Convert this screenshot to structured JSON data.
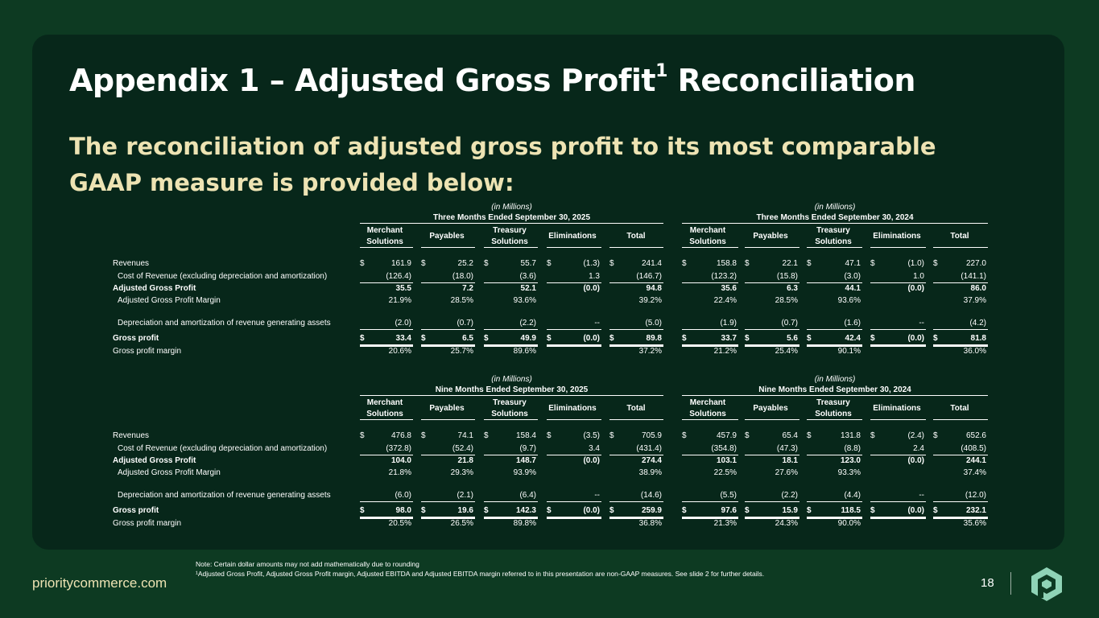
{
  "title": "Appendix 1 – Adjusted Gross Profit",
  "title_sup": "1",
  "title_end": " Reconciliation",
  "subtitle": "The reconciliation of adjusted gross profit to its most comparable GAAP measure is provided below:",
  "col_headers": [
    [
      "Merchant",
      "Solutions"
    ],
    [
      "Payables"
    ],
    [
      "Treasury",
      "Solutions"
    ],
    [
      "Eliminations"
    ],
    [
      "Total"
    ]
  ],
  "sections": [
    {
      "groups": [
        {
          "unit": "(in Millions)",
          "period": "Three Months Ended September 30, 2025"
        },
        {
          "unit": "(in Millions)",
          "period": "Three Months Ended September 30, 2024"
        }
      ],
      "rows": [
        {
          "label": "Revenues",
          "indent": false,
          "dollar": true,
          "bold": false,
          "values": [
            "161.9",
            "25.2",
            "55.7",
            "(1.3)",
            "241.4",
            "158.8",
            "22.1",
            "47.1",
            "(1.0)",
            "227.0"
          ]
        },
        {
          "label": "Cost of Revenue (excluding depreciation and amortization)",
          "indent": true,
          "dollar": false,
          "bold": false,
          "values": [
            "(126.4)",
            "(18.0)",
            "(3.6)",
            "1.3",
            "(146.7)",
            "(123.2)",
            "(15.8)",
            "(3.0)",
            "1.0",
            "(141.1)"
          ]
        },
        {
          "label": "Adjusted Gross Profit",
          "indent": false,
          "dollar": false,
          "bold": true,
          "values": [
            "35.5",
            "7.2",
            "52.1",
            "(0.0)",
            "94.8",
            "35.6",
            "6.3",
            "44.1",
            "(0.0)",
            "86.0"
          ]
        },
        {
          "label": "Adjusted Gross Profit Margin",
          "indent": true,
          "dollar": false,
          "bold": false,
          "values": [
            "21.9%",
            "28.5%",
            "93.6%",
            "",
            "39.2%",
            "22.4%",
            "28.5%",
            "93.6%",
            "",
            "37.9%"
          ]
        },
        {
          "label": "Depreciation and amortization of revenue generating assets",
          "indent": true,
          "dollar": false,
          "bold": false,
          "values": [
            "(2.0)",
            "(0.7)",
            "(2.2)",
            "--",
            "(5.0)",
            "(1.9)",
            "(0.7)",
            "(1.6)",
            "--",
            "(4.2)"
          ]
        },
        {
          "label": "Gross profit",
          "indent": false,
          "dollar": true,
          "bold": true,
          "values": [
            "33.4",
            "6.5",
            "49.9",
            "(0.0)",
            "89.8",
            "33.7",
            "5.6",
            "42.4",
            "(0.0)",
            "81.8"
          ]
        },
        {
          "label": "Gross profit margin",
          "indent": false,
          "dollar": false,
          "bold": false,
          "values": [
            "20.6%",
            "25.7%",
            "89.6%",
            "",
            "37.2%",
            "21.2%",
            "25.4%",
            "90.1%",
            "",
            "36.0%"
          ]
        }
      ]
    },
    {
      "groups": [
        {
          "unit": "(in Millions)",
          "period": "Nine Months Ended September 30, 2025"
        },
        {
          "unit": "(in Millions)",
          "period": "Nine Months Ended September 30, 2024"
        }
      ],
      "rows": [
        {
          "label": "Revenues",
          "indent": false,
          "dollar": true,
          "bold": false,
          "values": [
            "476.8",
            "74.1",
            "158.4",
            "(3.5)",
            "705.9",
            "457.9",
            "65.4",
            "131.8",
            "(2.4)",
            "652.6"
          ]
        },
        {
          "label": "Cost of Revenue (excluding depreciation and amortization)",
          "indent": true,
          "dollar": false,
          "bold": false,
          "values": [
            "(372.8)",
            "(52.4)",
            "(9.7)",
            "3.4",
            "(431.4)",
            "(354.8)",
            "(47.3)",
            "(8.8)",
            "2.4",
            "(408.5)"
          ]
        },
        {
          "label": "Adjusted Gross Profit",
          "indent": false,
          "dollar": false,
          "bold": true,
          "values": [
            "104.0",
            "21.8",
            "148.7",
            "(0.0)",
            "274.4",
            "103.1",
            "18.1",
            "123.0",
            "(0.0)",
            "244.1"
          ]
        },
        {
          "label": "Adjusted Gross Profit Margin",
          "indent": true,
          "dollar": false,
          "bold": false,
          "values": [
            "21.8%",
            "29.3%",
            "93.9%",
            "",
            "38.9%",
            "22.5%",
            "27.6%",
            "93.3%",
            "",
            "37.4%"
          ]
        },
        {
          "label": "Depreciation and amortization of revenue generating assets",
          "indent": true,
          "dollar": false,
          "bold": false,
          "values": [
            "(6.0)",
            "(2.1)",
            "(6.4)",
            "--",
            "(14.6)",
            "(5.5)",
            "(2.2)",
            "(4.4)",
            "--",
            "(12.0)"
          ]
        },
        {
          "label": "Gross profit",
          "indent": false,
          "dollar": true,
          "bold": true,
          "values": [
            "98.0",
            "19.6",
            "142.3",
            "(0.0)",
            "259.9",
            "97.6",
            "15.9",
            "118.5",
            "(0.0)",
            "232.1"
          ]
        },
        {
          "label": "Gross profit margin",
          "indent": false,
          "dollar": false,
          "bold": false,
          "values": [
            "20.5%",
            "26.5%",
            "89.8%",
            "",
            "36.8%",
            "21.3%",
            "24.3%",
            "90.0%",
            "",
            "35.6%"
          ]
        }
      ]
    }
  ],
  "dollar_sign": "$",
  "notes": [
    "Note: Certain dollar amounts may not add mathematically due to rounding",
    "¹Adjusted Gross Profit, Adjusted Gross Profit margin, Adjusted EBITDA and Adjusted EBITDA margin referred to in this presentation are non-GAAP measures. See slide 2 for further details."
  ],
  "footer": {
    "url": "prioritycommerce.com",
    "page_number": "18",
    "logo_icon": "priority-logo-icon"
  },
  "colors": {
    "background": "#0d3a22",
    "panel": "#07271a",
    "accent": "#ede3b3",
    "logo": "#8fd3b6"
  }
}
